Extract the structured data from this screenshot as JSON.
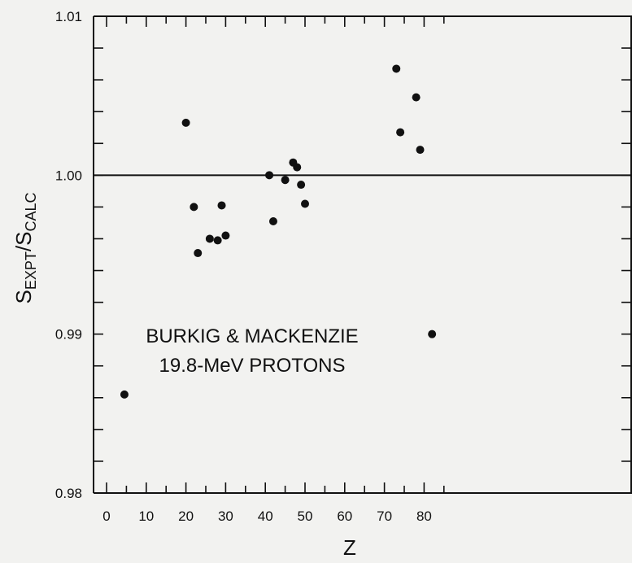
{
  "chart_data": {
    "type": "scatter",
    "title": "",
    "annotation": [
      "BURKIG & MACKENZIE",
      "19.8-MeV PROTONS"
    ],
    "xlabel": "Z",
    "ylabel": {
      "base": "S",
      "sub1": "EXPT",
      "slash": "/",
      "base2": "S",
      "sub2": "CALC"
    },
    "xlim": [
      0,
      82
    ],
    "ylim": [
      0.98,
      1.01
    ],
    "x_ticks": [
      0,
      10,
      20,
      30,
      40,
      50,
      60,
      70,
      80
    ],
    "x_tick_labels": [
      "0",
      "10",
      "20",
      "30",
      "40",
      "50",
      "60",
      "70",
      "80"
    ],
    "y_ticks": [
      0.98,
      0.99,
      1.0,
      1.01
    ],
    "y_tick_labels": [
      "0.98",
      "0.99",
      "1.00",
      "1.01"
    ],
    "reference_line": 1.0,
    "grid": false,
    "points": [
      {
        "x": 4.5,
        "y": 0.9862
      },
      {
        "x": 20,
        "y": 1.0033
      },
      {
        "x": 22,
        "y": 0.998
      },
      {
        "x": 23,
        "y": 0.9951
      },
      {
        "x": 26,
        "y": 0.996
      },
      {
        "x": 28,
        "y": 0.9959
      },
      {
        "x": 29,
        "y": 0.9981
      },
      {
        "x": 30,
        "y": 0.9962
      },
      {
        "x": 41,
        "y": 1.0
      },
      {
        "x": 42,
        "y": 0.9971
      },
      {
        "x": 45,
        "y": 0.9997
      },
      {
        "x": 47,
        "y": 1.0008
      },
      {
        "x": 48,
        "y": 1.0005
      },
      {
        "x": 49,
        "y": 0.9994
      },
      {
        "x": 50,
        "y": 0.9982
      },
      {
        "x": 73,
        "y": 1.0067
      },
      {
        "x": 74,
        "y": 1.0027
      },
      {
        "x": 78,
        "y": 1.0049
      },
      {
        "x": 79,
        "y": 1.0016
      },
      {
        "x": 82,
        "y": 0.99
      }
    ]
  }
}
